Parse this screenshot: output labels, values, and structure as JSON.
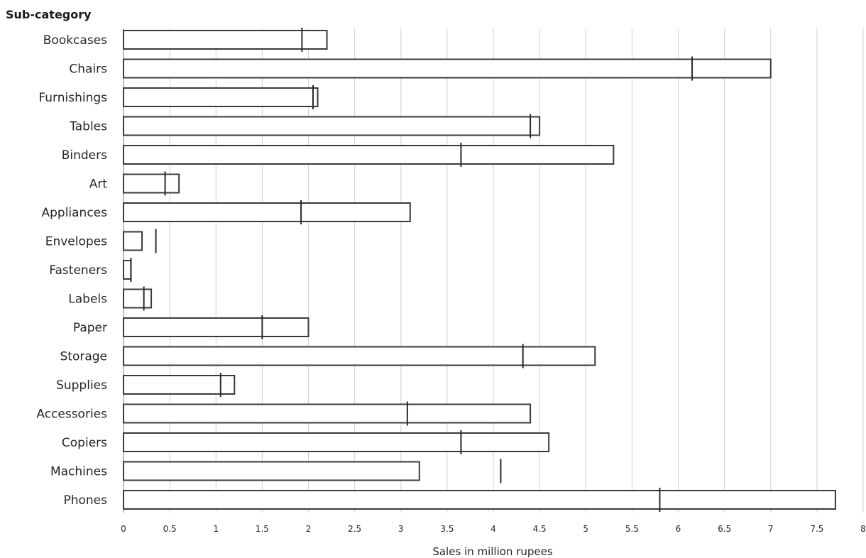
{
  "chart_data": {
    "type": "bar",
    "orientation": "horizontal",
    "ylabel": "Sub-category",
    "xlabel": "Sales in million rupees",
    "xlim": [
      0,
      8
    ],
    "xticks": [
      "0",
      "0.5",
      "1",
      "1.5",
      "2",
      "2.5",
      "3",
      "3.5",
      "4",
      "4.5",
      "5",
      "5.5",
      "6",
      "6.5",
      "7",
      "7.5",
      "8"
    ],
    "grid": true,
    "categories": [
      "Bookcases",
      "Chairs",
      "Furnishings",
      "Tables",
      "Binders",
      "Art",
      "Appliances",
      "Envelopes",
      "Fasteners",
      "Labels",
      "Paper",
      "Storage",
      "Supplies",
      "Accessories",
      "Copiers",
      "Machines",
      "Phones"
    ],
    "series": [
      {
        "values": [
          2.2,
          7.0,
          2.1,
          4.5,
          5.3,
          0.6,
          3.1,
          0.2,
          0.08,
          0.3,
          2.0,
          5.1,
          1.2,
          4.4,
          4.6,
          3.2,
          7.7
        ]
      },
      {
        "marker": "vertical-line",
        "values": [
          1.93,
          6.15,
          2.05,
          4.4,
          3.65,
          0.45,
          1.92,
          0.35,
          0.08,
          0.22,
          1.5,
          4.32,
          1.05,
          3.07,
          3.65,
          4.08,
          5.8
        ]
      }
    ]
  }
}
